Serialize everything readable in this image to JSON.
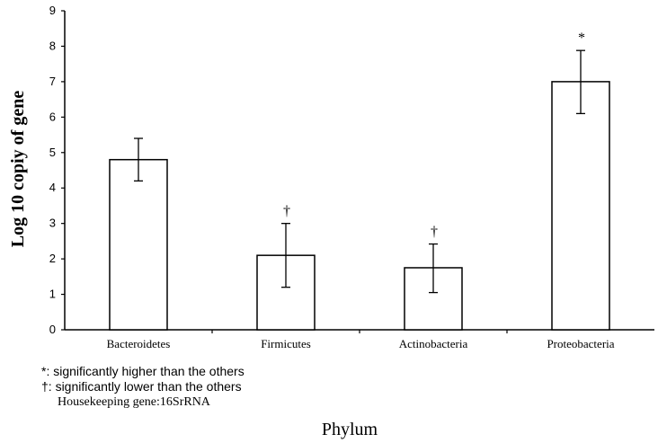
{
  "chart_data": {
    "type": "bar",
    "categories": [
      "Bacteroidetes",
      "Firmicutes",
      "Actinobacteria",
      "Proteobacteria"
    ],
    "values": [
      4.8,
      2.1,
      1.75,
      7.0
    ],
    "error_low": [
      4.2,
      1.2,
      1.05,
      6.1
    ],
    "error_high": [
      5.4,
      3.0,
      2.42,
      7.88
    ],
    "annotations": [
      "",
      "†",
      "†",
      "*"
    ],
    "ylabel": "Log 10 copiy of gene",
    "xlabel": "Phylum",
    "ylim": [
      0,
      9
    ],
    "yticks": [
      "0",
      "1",
      "2",
      "3",
      "4",
      "5",
      "6",
      "7",
      "8",
      "9"
    ],
    "grid": false,
    "bar_fill": "#ffffff",
    "bar_stroke": "#000000"
  },
  "notes": {
    "line1": "*: significantly higher than the others",
    "line2": "†: significantly lower than the others",
    "line3": "Housekeeping gene:16SrRNA"
  }
}
